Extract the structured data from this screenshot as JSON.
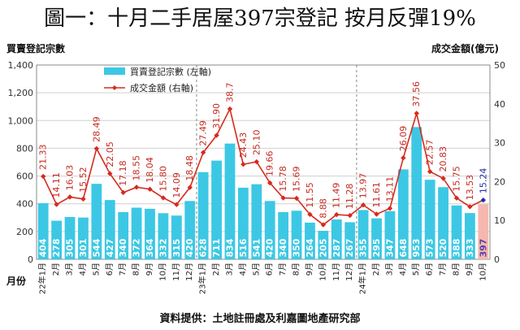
{
  "title": "圖一：十月二手居屋397宗登記 按月反彈19%",
  "footer": "資料提供：土地註冊處及利嘉圖地產研究部",
  "colors": {
    "bar": "#3cc8e4",
    "bar_last": "#f5b8ae",
    "line": "#d62b1e",
    "last_point": "#1f2fa8",
    "value_text": "#c42a20"
  },
  "chart_data": {
    "type": "bar",
    "title": "",
    "left_axis_label": "買賣登記宗數",
    "right_axis_label": "成交金額(億元)",
    "x_axis_label": "月份",
    "legend": [
      "買賣登記宗數 (左軸)",
      "成交金額 (右軸)"
    ],
    "legend_position": "top-left",
    "left_ylim": [
      0,
      1400
    ],
    "left_ticks": [
      "0",
      "200",
      "400",
      "600",
      "800",
      "1,000",
      "1,200",
      "1,400"
    ],
    "right_ylim": [
      0,
      50
    ],
    "right_ticks": [
      "0",
      "10",
      "20",
      "30",
      "40",
      "50"
    ],
    "grid": true,
    "categories": [
      "22年1月",
      "2月",
      "3月",
      "4月",
      "5月",
      "6月",
      "7月",
      "8月",
      "9月",
      "10月",
      "11月",
      "12月",
      "23年1月",
      "2月",
      "3月",
      "4月",
      "5月",
      "6月",
      "7月",
      "8月",
      "9月",
      "10月",
      "11月",
      "12月",
      "24年1月",
      "2月",
      "3月",
      "4月",
      "5月",
      "6月",
      "7月",
      "8月",
      "9月",
      "10月"
    ],
    "series": [
      {
        "name": "買賣登記宗數 (左軸)",
        "type": "bar",
        "axis": "left",
        "values": [
          404,
          278,
          305,
          301,
          544,
          427,
          340,
          372,
          364,
          332,
          315,
          420,
          628,
          711,
          834,
          516,
          541,
          420,
          340,
          350,
          264,
          205,
          287,
          267,
          355,
          295,
          347,
          648,
          953,
          573,
          520,
          388,
          333,
          397
        ]
      },
      {
        "name": "成交金額 (右軸)",
        "type": "line",
        "axis": "right",
        "values": [
          21.33,
          14.11,
          16.03,
          15.52,
          28.49,
          22.05,
          17.18,
          18.55,
          18.04,
          15.8,
          14.09,
          18.48,
          27.49,
          31.9,
          38.7,
          24.43,
          25.1,
          19.66,
          15.78,
          15.69,
          11.55,
          8.88,
          11.49,
          11.28,
          13.97,
          11.61,
          13.11,
          26.09,
          37.56,
          22.57,
          20.83,
          15.75,
          13.53,
          15.24
        ]
      }
    ]
  }
}
